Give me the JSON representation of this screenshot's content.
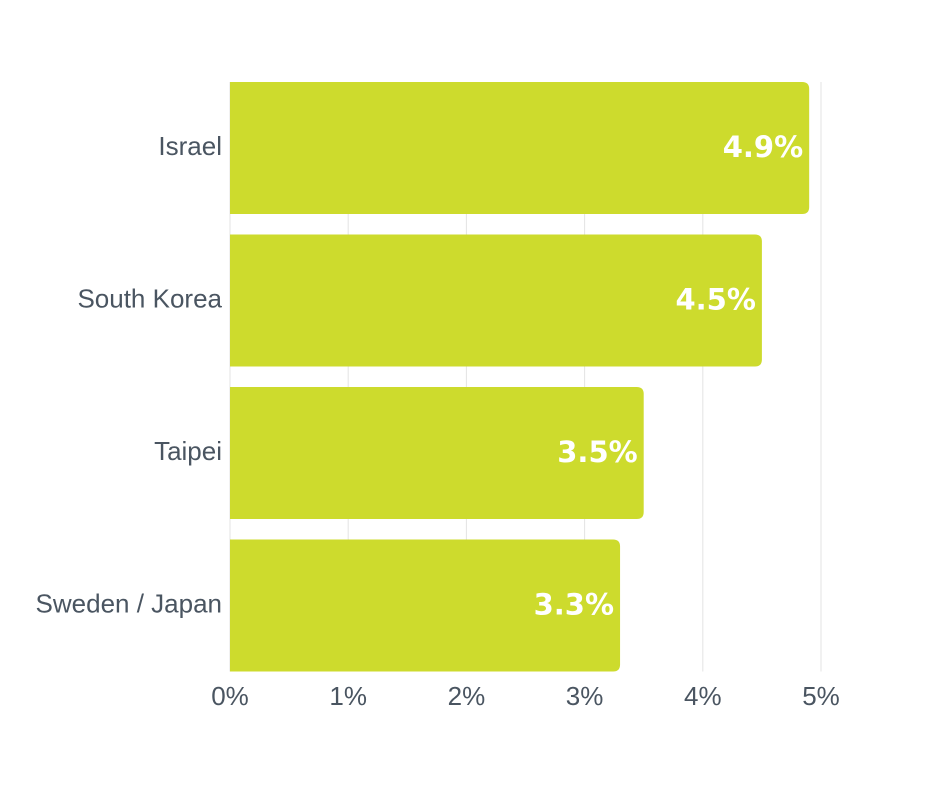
{
  "chart_data": {
    "type": "bar",
    "orientation": "horizontal",
    "categories": [
      "Israel",
      "South Korea",
      "Taipei",
      "Sweden / Japan"
    ],
    "values": [
      4.9,
      4.5,
      3.5,
      3.3
    ],
    "value_labels": [
      "4.9%",
      "4.5%",
      "3.5%",
      "3.3%"
    ],
    "xlim": [
      0,
      5
    ],
    "x_ticks": [
      0,
      1,
      2,
      3,
      4,
      5
    ],
    "x_tick_labels": [
      "0%",
      "1%",
      "2%",
      "3%",
      "4%",
      "5%"
    ],
    "grid": true,
    "legend": "none",
    "title": "",
    "xlabel": "",
    "ylabel": "",
    "colors": {
      "bar": "#cddb2d",
      "value_label": "#ffffff",
      "axis_text": "#4a5561",
      "grid": "#e3e3e3"
    }
  }
}
